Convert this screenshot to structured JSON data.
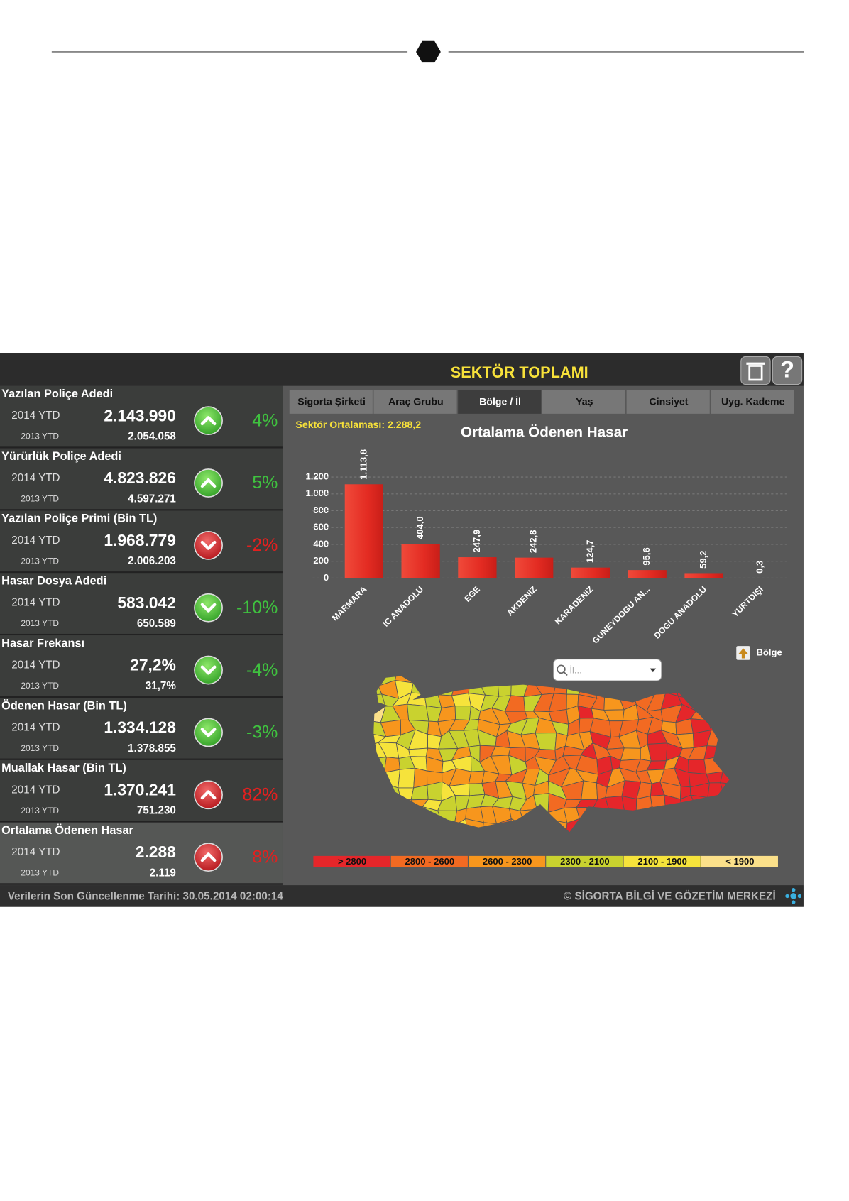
{
  "header": {
    "title": "SEKTÖR TOPLAMI"
  },
  "metrics": [
    {
      "name": "Yazılan Poliçe Adedi",
      "current_label": "2014 YTD",
      "current": "2.143.990",
      "previous_label": "2013 YTD",
      "previous": "2.054.058",
      "change": "4%",
      "trend": "up",
      "status": "good"
    },
    {
      "name": "Yürürlük Poliçe Adedi",
      "current_label": "2014 YTD",
      "current": "4.823.826",
      "previous_label": "2013 YTD",
      "previous": "4.597.271",
      "change": "5%",
      "trend": "up",
      "status": "good"
    },
    {
      "name": "Yazılan Poliçe Primi (Bin TL)",
      "current_label": "2014 YTD",
      "current": "1.968.779",
      "previous_label": "2013 YTD",
      "previous": "2.006.203",
      "change": "-2%",
      "trend": "down",
      "status": "bad"
    },
    {
      "name": "Hasar Dosya Adedi",
      "current_label": "2014 YTD",
      "current": "583.042",
      "previous_label": "2013 YTD",
      "previous": "650.589",
      "change": "-10%",
      "trend": "down",
      "status": "good"
    },
    {
      "name": "Hasar Frekansı",
      "current_label": "2014 YTD",
      "current": "27,2%",
      "previous_label": "2013 YTD",
      "previous": "31,7%",
      "change": "-4%",
      "trend": "down",
      "status": "good"
    },
    {
      "name": "Ödenen Hasar (Bin TL)",
      "current_label": "2014 YTD",
      "current": "1.334.128",
      "previous_label": "2013 YTD",
      "previous": "1.378.855",
      "change": "-3%",
      "trend": "down",
      "status": "good"
    },
    {
      "name": "Muallak Hasar (Bin TL)",
      "current_label": "2014 YTD",
      "current": "1.370.241",
      "previous_label": "2013 YTD",
      "previous": "751.230",
      "change": "82%",
      "trend": "up",
      "status": "bad"
    },
    {
      "name": "Ortalama Ödenen Hasar",
      "current_label": "2014 YTD",
      "current": "2.288",
      "previous_label": "2013 YTD",
      "previous": "2.119",
      "change": "8%",
      "trend": "up",
      "status": "bad"
    }
  ],
  "tabs": {
    "items": [
      "Sigorta Şirketi",
      "Araç Grubu",
      "Bölge / İl",
      "Yaş",
      "Cinsiyet",
      "Uyg. Kademe"
    ],
    "active": 2
  },
  "sector_average": "Sektör Ortalaması: 2.288,2",
  "chart_data": {
    "type": "bar",
    "title": "Ortalama Ödenen Hasar",
    "categories": [
      "MARMARA",
      "IC ANADOLU",
      "EGE",
      "AKDENIZ",
      "KARADENIZ",
      "GUNEYDOGU AN...",
      "DOGU ANADOLU",
      "YURTDIŞI"
    ],
    "values": [
      1113.8,
      404.0,
      247.9,
      242.8,
      124.7,
      95.6,
      59.2,
      0.3
    ],
    "value_labels": [
      "1.113,8",
      "404,0",
      "247,9",
      "242,8",
      "124,7",
      "95,6",
      "59,2",
      "0,3"
    ],
    "color": "#e8302a",
    "ylim": [
      0,
      1200
    ],
    "yticks": [
      0,
      200,
      400,
      600,
      800,
      {
        "value": 1000,
        "label": "1.000"
      },
      {
        "value": 1200,
        "label": "1.200"
      }
    ],
    "grid": true
  },
  "map": {
    "region_button": "Bölge",
    "search_placeholder": "İl...",
    "legend": [
      {
        "label": "> 2800",
        "color": "#e5262a"
      },
      {
        "label": "2800 - 2600",
        "color": "#f26a22"
      },
      {
        "label": "2600 - 2300",
        "color": "#f7961d"
      },
      {
        "label": "2300 - 2100",
        "color": "#c9d22f"
      },
      {
        "label": "2100 - 1900",
        "color": "#f6e33b"
      },
      {
        "label": "< 1900",
        "color": "#fbe08a"
      }
    ]
  },
  "footer": {
    "updated": "Verilerin Son Güncellenme Tarihi: 30.05.2014 02:00:14",
    "copyright": "© SİGORTA BİLGİ VE GÖZETİM MERKEZİ"
  }
}
